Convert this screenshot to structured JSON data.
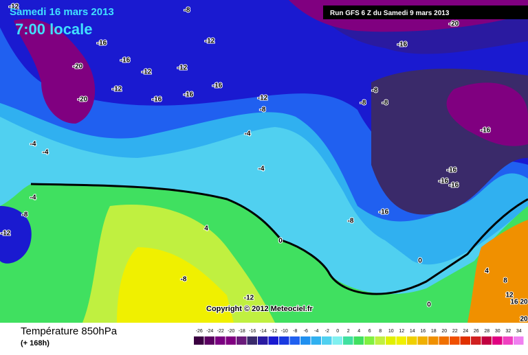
{
  "header": {
    "date": "Samedi 16 mars 2013",
    "time": "7:00 locale",
    "run": "Run GFS 6 Z du Samedi 9 mars 2013"
  },
  "copyright": "Copyright © 2012 Meteociel.fr",
  "footer": {
    "title": "Température 850hPa",
    "lead": "(+ 168h)"
  },
  "map_labels": [
    -12,
    -8,
    -20,
    -16,
    -12,
    -16,
    -16,
    -20,
    -12,
    -12,
    -16,
    -12,
    -16,
    -16,
    -20,
    -12,
    -8,
    -8,
    -8,
    -8,
    -16,
    -4,
    -4,
    -4,
    -4,
    -16,
    -16,
    -16,
    -4,
    -8,
    -16,
    -8,
    -12,
    4,
    0,
    0,
    -8,
    4,
    8,
    -12,
    12,
    16,
    20,
    0,
    20
  ],
  "scale": {
    "values": [
      -26,
      -24,
      -22,
      -20,
      -18,
      -16,
      -14,
      -12,
      -10,
      -8,
      -6,
      -4,
      -2,
      0,
      2,
      4,
      6,
      8,
      10,
      12,
      14,
      16,
      18,
      20,
      22,
      24,
      26,
      28,
      30,
      32,
      34
    ],
    "colors": [
      "#3a0040",
      "#5a0060",
      "#7a0080",
      "#800080",
      "#6a1a7a",
      "#3a2a6a",
      "#2a1aa0",
      "#1a1ad0",
      "#1a3ae0",
      "#2060f0",
      "#2090f0",
      "#30b0f0",
      "#50d0f0",
      "#80f0f0",
      "#40e0a0",
      "#40e060",
      "#80f040",
      "#c0f040",
      "#e0f000",
      "#f0f000",
      "#f0d000",
      "#f0b000",
      "#f09000",
      "#f07000",
      "#f05000",
      "#e03000",
      "#d02020",
      "#c00040",
      "#e00080",
      "#f040c0",
      "#f080f0"
    ]
  }
}
